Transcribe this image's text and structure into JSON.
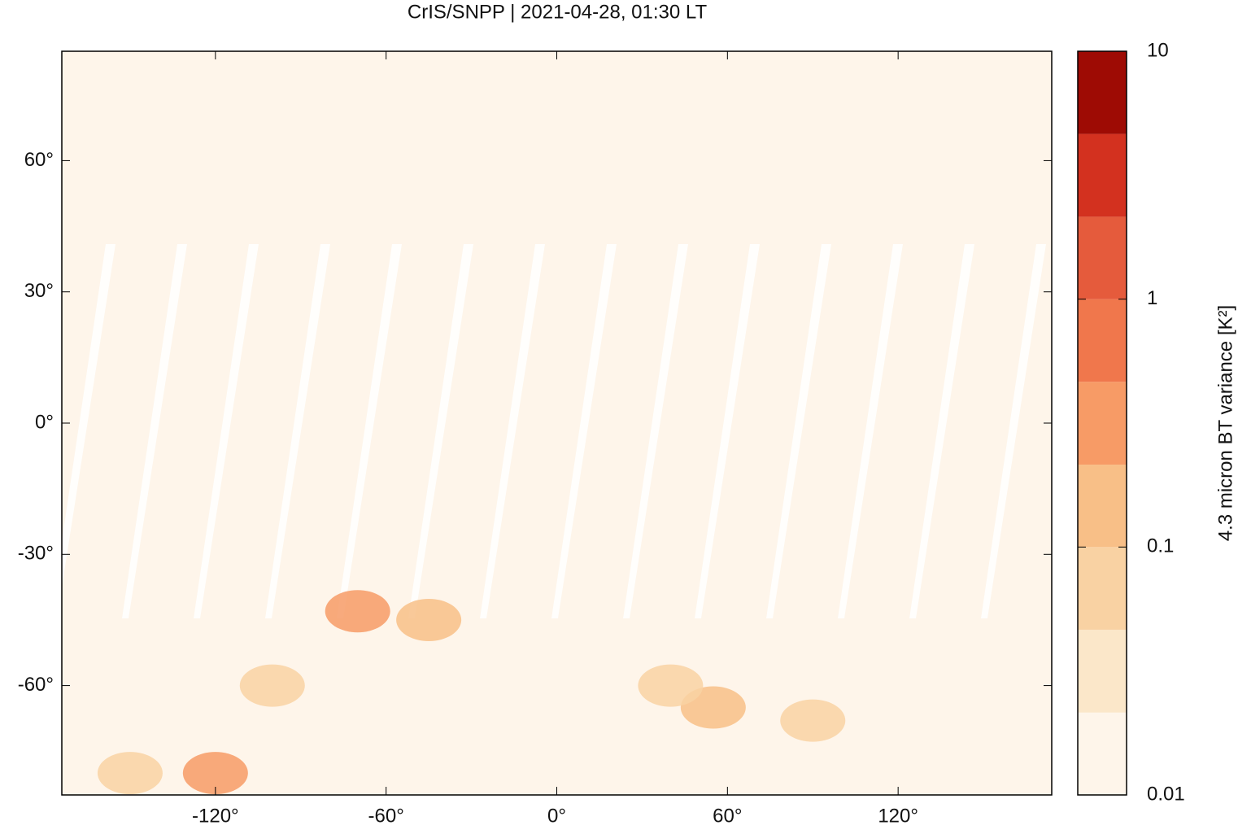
{
  "chart_data": {
    "type": "map",
    "title": "CrIS/SNPP | 2021-04-28, 01:30 LT",
    "xlim": [
      -174,
      174
    ],
    "ylim": [
      -85,
      85
    ],
    "xticks": [
      {
        "value": -120,
        "label": "-120°"
      },
      {
        "value": -60,
        "label": "-60°"
      },
      {
        "value": 0,
        "label": "0°"
      },
      {
        "value": 60,
        "label": "60°"
      },
      {
        "value": 120,
        "label": "120°"
      }
    ],
    "yticks": [
      {
        "value": -60,
        "label": "-60°"
      },
      {
        "value": -30,
        "label": "-30°"
      },
      {
        "value": 0,
        "label": "0°"
      },
      {
        "value": 30,
        "label": "30°"
      },
      {
        "value": 60,
        "label": "60°"
      }
    ],
    "background_color": "#fef5ea",
    "colorbar": {
      "label": "4.3 micron BT variance [K²]",
      "log_scale": true,
      "lim": [
        0.01,
        10
      ],
      "ticks": [
        0.01,
        0.1,
        1,
        10
      ],
      "levels": [
        0.01,
        0.0215,
        0.0464,
        0.1,
        0.215,
        0.464,
        1,
        2.15,
        4.64,
        10
      ],
      "colors": [
        "#fef5ea",
        "#fbe7c9",
        "#f9d2a3",
        "#f8bf87",
        "#f79b66",
        "#f0774c",
        "#e55b3c",
        "#d3311f",
        "#9e0b04"
      ]
    },
    "highlights": {
      "lon": [
        -70,
        -120,
        -45,
        55,
        -100,
        90,
        -150,
        40
      ],
      "lat": [
        -43,
        -80,
        -45,
        -65,
        -60,
        -68,
        -80,
        -60
      ],
      "values": [
        0.3,
        0.25,
        0.12,
        0.11,
        0.07,
        0.08,
        0.06,
        0.06
      ]
    }
  }
}
